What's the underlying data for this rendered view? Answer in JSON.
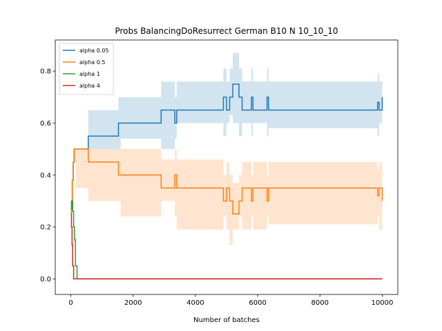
{
  "chart_data": {
    "type": "line",
    "title": "Probs BalancingDoResurrect German B10 N 10_10_10",
    "xlabel": "Number of batches",
    "ylabel": "",
    "xlim": [
      -500,
      10500
    ],
    "ylim": [
      -0.06,
      0.92
    ],
    "xticks": [
      0,
      2000,
      4000,
      6000,
      8000,
      10000
    ],
    "xtick_labels": [
      "0",
      "2000",
      "4000",
      "6000",
      "8000",
      "10000"
    ],
    "yticks": [
      0.0,
      0.2,
      0.4,
      0.6,
      0.8
    ],
    "ytick_labels": [
      "0.0",
      "0.2",
      "0.4",
      "0.6",
      "0.8"
    ],
    "grid": false,
    "legend_position": "top-left",
    "series": [
      {
        "name": "alpha 0.05",
        "color": "#1f77b4",
        "x": [
          0,
          20,
          50,
          80,
          110,
          150,
          560,
          1530,
          1600,
          2900,
          3340,
          3400,
          4900,
          5000,
          5100,
          5200,
          5400,
          5500,
          5800,
          5850,
          6300,
          6350,
          9850,
          9900,
          10000
        ],
        "y": [
          0.25,
          0.3,
          0.38,
          0.45,
          0.5,
          0.5,
          0.55,
          0.6,
          0.6,
          0.65,
          0.6,
          0.65,
          0.7,
          0.65,
          0.7,
          0.75,
          0.7,
          0.65,
          0.7,
          0.65,
          0.7,
          0.65,
          0.68,
          0.65,
          0.7
        ],
        "band_lower": [
          0.25,
          0.3,
          0.38,
          0.45,
          0.5,
          0.5,
          0.5,
          0.5,
          0.5,
          0.54,
          0.5,
          0.54,
          0.6,
          0.55,
          0.6,
          0.63,
          0.6,
          0.55,
          0.6,
          0.55,
          0.6,
          0.55,
          0.58,
          0.55,
          0.6
        ],
        "band_upper": [
          0.25,
          0.3,
          0.38,
          0.45,
          0.5,
          0.5,
          0.65,
          0.7,
          0.7,
          0.76,
          0.7,
          0.76,
          0.81,
          0.76,
          0.81,
          0.87,
          0.81,
          0.76,
          0.81,
          0.76,
          0.81,
          0.76,
          0.79,
          0.76,
          0.81
        ]
      },
      {
        "name": "alpha 0.5",
        "color": "#ff7f0e",
        "x": [
          0,
          20,
          50,
          80,
          110,
          150,
          560,
          1530,
          1600,
          2900,
          3340,
          3400,
          4900,
          5000,
          5100,
          5200,
          5400,
          5500,
          5800,
          5850,
          6300,
          6350,
          9850,
          9900,
          10000
        ],
        "y": [
          0.25,
          0.3,
          0.38,
          0.45,
          0.5,
          0.5,
          0.45,
          0.4,
          0.4,
          0.35,
          0.4,
          0.35,
          0.3,
          0.35,
          0.3,
          0.25,
          0.3,
          0.35,
          0.3,
          0.35,
          0.3,
          0.35,
          0.32,
          0.35,
          0.3
        ],
        "band_lower": [
          0.25,
          0.3,
          0.38,
          0.45,
          0.5,
          0.5,
          0.35,
          0.3,
          0.3,
          0.24,
          0.3,
          0.24,
          0.19,
          0.24,
          0.19,
          0.13,
          0.19,
          0.24,
          0.19,
          0.24,
          0.19,
          0.24,
          0.21,
          0.24,
          0.19
        ],
        "band_upper": [
          0.25,
          0.3,
          0.38,
          0.45,
          0.5,
          0.5,
          0.5,
          0.5,
          0.5,
          0.46,
          0.5,
          0.46,
          0.4,
          0.45,
          0.4,
          0.37,
          0.4,
          0.45,
          0.4,
          0.45,
          0.4,
          0.45,
          0.42,
          0.45,
          0.4
        ]
      },
      {
        "name": "alpha 1",
        "color": "#2ca02c",
        "x": [
          0,
          30,
          60,
          90,
          120,
          150,
          200,
          10000
        ],
        "y": [
          0.27,
          0.3,
          0.26,
          0.2,
          0.15,
          0.05,
          0.0,
          0.0
        ]
      },
      {
        "name": "alpha 4",
        "color": "#d62728",
        "x": [
          0,
          20,
          40,
          60,
          90,
          10000
        ],
        "y": [
          0.25,
          0.2,
          0.13,
          0.05,
          0.0,
          0.0
        ]
      }
    ]
  }
}
